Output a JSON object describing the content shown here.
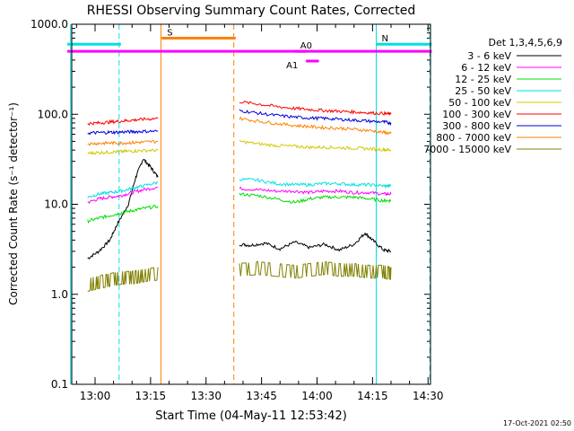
{
  "chart_data": {
    "type": "line",
    "title": "RHESSI Observing Summary Count Rates, Corrected",
    "xlabel": "Start Time (04-May-11 12:53:42)",
    "ylabel": "Corrected Count Rate (s⁻¹ detector⁻¹)",
    "y_scale": "log",
    "ylim": [
      0.1,
      1000.0
    ],
    "xlim": [
      "12:53:42",
      "14:30:40"
    ],
    "x_tick_labels": [
      "13:00",
      "13:15",
      "13:30",
      "13:45",
      "14:00",
      "14:15",
      "14:30"
    ],
    "x_tick_minutes": [
      780,
      795,
      810,
      825,
      840,
      855,
      870
    ],
    "y_tick_labels": [
      "0.1",
      "1.0",
      "10.0",
      "100.0",
      "1000.0"
    ],
    "y_tick_values": [
      0.1,
      1,
      10,
      100,
      1000
    ],
    "legend_title": "Det 1,3,4,5,6,9",
    "legend_position": "right",
    "date_stamp": "17-Oct-2021 02:50",
    "series": [
      {
        "name": "3 - 6 keV",
        "color": "#000000",
        "segments": [
          {
            "x": [
              778,
              781,
              784,
              786,
              789,
              791,
              793,
              795,
              797
            ],
            "y": [
              2.5,
              3,
              4,
              6,
              10,
              20,
              32,
              26,
              20
            ]
          },
          {
            "x": [
              819,
              822,
              826,
              830,
              834,
              838,
              842,
              846,
              850,
              853,
              855,
              858,
              860
            ],
            "y": [
              3.6,
              3.5,
              3.7,
              3.2,
              3.8,
              3.3,
              3.6,
              3.1,
              3.6,
              4.8,
              4.0,
              3.1,
              3.0
            ]
          }
        ]
      },
      {
        "name": "6 - 12 keV",
        "color": "#ff00ff",
        "segments": [
          {
            "x": [
              778,
              781,
              784,
              787,
              790,
              793,
              797
            ],
            "y": [
              10.5,
              11.5,
              12,
              12.5,
              13.5,
              14.5,
              15.5
            ]
          },
          {
            "x": [
              819,
              824,
              829,
              834,
              838,
              842,
              846,
              850,
              854,
              858,
              860
            ],
            "y": [
              15,
              14.5,
              14,
              14,
              13.5,
              14,
              14,
              13.5,
              13.5,
              13,
              13
            ]
          }
        ]
      },
      {
        "name": "12 - 25 keV",
        "color": "#00dd00",
        "segments": [
          {
            "x": [
              778,
              781,
              784,
              787,
              790,
              793,
              797
            ],
            "y": [
              6.5,
              7,
              7.5,
              8,
              8.5,
              9,
              9.5
            ]
          },
          {
            "x": [
              819,
              824,
              829,
              834,
              838,
              842,
              846,
              850,
              854,
              858,
              860
            ],
            "y": [
              13,
              12.5,
              11.5,
              10.5,
              11.5,
              12,
              12,
              12,
              11.5,
              11,
              11
            ]
          }
        ]
      },
      {
        "name": "25 - 50 keV",
        "color": "#00e0e0",
        "segments": [
          {
            "x": [
              778,
              781,
              784,
              787,
              790,
              793,
              797
            ],
            "y": [
              12,
              13,
              13.5,
              14,
              15,
              16,
              17.5
            ]
          },
          {
            "x": [
              819,
              824,
              829,
              834,
              838,
              842,
              846,
              850,
              854,
              858,
              860
            ],
            "y": [
              19,
              18.5,
              17,
              16.5,
              16.5,
              17,
              17,
              16.5,
              16.5,
              16,
              16
            ]
          }
        ]
      },
      {
        "name": "50 - 100 keV",
        "color": "#d4c800",
        "segments": [
          {
            "x": [
              778,
              781,
              784,
              787,
              790,
              793,
              797
            ],
            "y": [
              37,
              37.5,
              38,
              38.5,
              39,
              39.5,
              40
            ]
          },
          {
            "x": [
              819,
              824,
              829,
              834,
              838,
              842,
              846,
              850,
              854,
              858,
              860
            ],
            "y": [
              50,
              47,
              45,
              44,
              43,
              43,
              42.5,
              42,
              41.5,
              40.5,
              40
            ]
          }
        ]
      },
      {
        "name": "100 - 300 keV",
        "color": "#ff0000",
        "segments": [
          {
            "x": [
              778,
              781,
              784,
              787,
              790,
              793,
              797
            ],
            "y": [
              79,
              80,
              82,
              84,
              86,
              88,
              90
            ]
          },
          {
            "x": [
              819,
              824,
              829,
              834,
              838,
              842,
              846,
              850,
              854,
              858,
              860
            ],
            "y": [
              138,
              130,
              122,
              116,
              113,
              110,
              108,
              106,
              104,
              102,
              100
            ]
          }
        ]
      },
      {
        "name": "300 - 800 keV",
        "color": "#0000dd",
        "segments": [
          {
            "x": [
              778,
              781,
              784,
              787,
              790,
              793,
              797
            ],
            "y": [
              62,
              62.5,
              63,
              63.5,
              64,
              64.5,
              65
            ]
          },
          {
            "x": [
              819,
              824,
              829,
              834,
              838,
              842,
              846,
              850,
              854,
              858,
              860
            ],
            "y": [
              110,
              103,
              97,
              93,
              91,
              90,
              88,
              86,
              84,
              82,
              80
            ]
          }
        ]
      },
      {
        "name": "800 - 7000 keV",
        "color": "#ff8000",
        "segments": [
          {
            "x": [
              778,
              781,
              784,
              787,
              790,
              793,
              797
            ],
            "y": [
              47,
              47.5,
              48,
              48,
              48.5,
              49,
              50
            ]
          },
          {
            "x": [
              819,
              824,
              829,
              834,
              838,
              842,
              846,
              850,
              854,
              858,
              860
            ],
            "y": [
              90,
              84,
              79,
              75,
              73,
              71,
              70,
              68,
              66,
              63,
              61
            ]
          }
        ]
      },
      {
        "name": "7000 - 15000 keV",
        "color": "#808000",
        "segments": [
          {
            "x": [
              778,
              781,
              784,
              787,
              790,
              793,
              797
            ],
            "y": [
              1.5,
              1.6,
              1.7,
              1.8,
              1.8,
              1.9,
              2.0
            ]
          },
          {
            "x": [
              819,
              824,
              829,
              834,
              838,
              842,
              846,
              850,
              854,
              858,
              860
            ],
            "y": [
              2.2,
              2.3,
              2.2,
              2.1,
              2.2,
              2.3,
              2.2,
              2.2,
              2.1,
              2.1,
              2.0
            ]
          }
        ]
      }
    ],
    "annotations": {
      "flags": [
        {
          "label": "N",
          "color": "#00e0e0",
          "level": 600,
          "segments": [
            [
              772.5,
              787
            ],
            [
              856,
              871
            ]
          ]
        },
        {
          "label": "S",
          "color": "#ff8000",
          "level": 700,
          "segments": [
            [
              798,
              818
            ]
          ]
        },
        {
          "label": "A1",
          "color": "#ff00ff",
          "level": 390,
          "segments": [
            [
              837,
              840.5
            ]
          ]
        },
        {
          "label": "A0",
          "color": "#ff00ff",
          "level": 500,
          "segments": [
            [
              772.5,
              871
            ],
            [
              834,
              837
            ]
          ]
        }
      ],
      "vlines": [
        {
          "x": 773.4,
          "color": "#00e0e0",
          "style": "solid"
        },
        {
          "x": 786.5,
          "color": "#00e0e0",
          "style": "dashed"
        },
        {
          "x": 797.8,
          "color": "#ff8000",
          "style": "solid"
        },
        {
          "x": 817.5,
          "color": "#ff8000",
          "style": "dashed"
        },
        {
          "x": 856.0,
          "color": "#00e0e0",
          "style": "solid"
        },
        {
          "x": 870.5,
          "color": "#00e0e0",
          "style": "dashed"
        }
      ]
    }
  }
}
